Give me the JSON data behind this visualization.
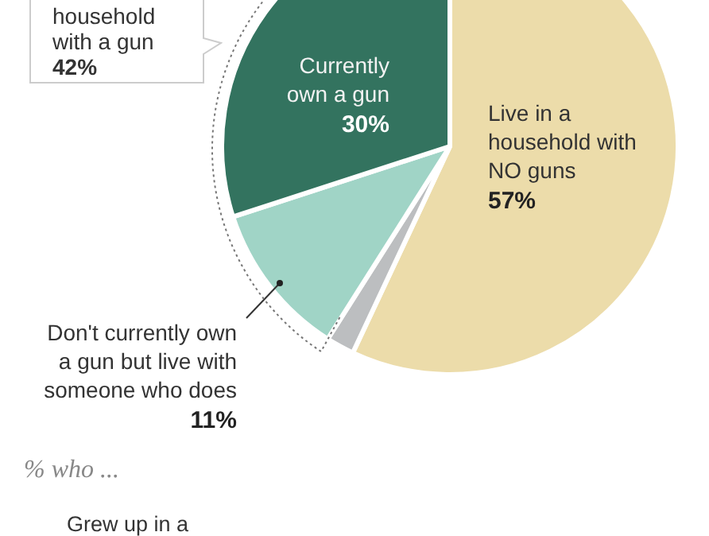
{
  "chart_data": {
    "type": "pie",
    "categories": [
      "Live in a household with NO guns",
      null,
      "Don't currently own a gun but live with someone who does",
      "Currently own a gun"
    ],
    "values": [
      57,
      2,
      11,
      30
    ],
    "value_labels": [
      "57%",
      null,
      "11%",
      "30%"
    ],
    "colors": [
      "#ecdcaa",
      "#bcbec0",
      "#a0d4c6",
      "#33735f"
    ],
    "legend": false,
    "annotations": [
      "household\nwith a gun\n42%",
      "% who ...",
      "Grew up in a"
    ]
  }
}
